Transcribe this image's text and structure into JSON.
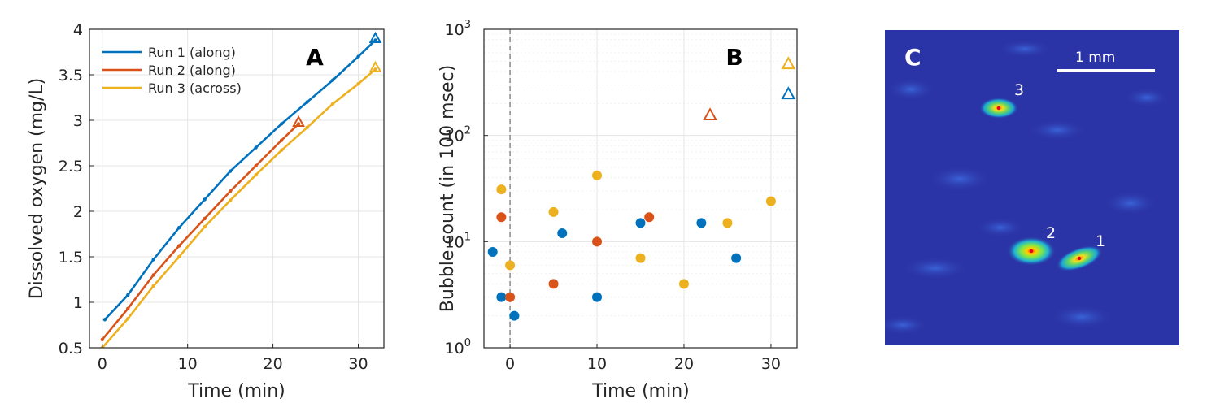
{
  "colors": {
    "run1": "#0072bd",
    "run2": "#d95319",
    "run3": "#edb120",
    "image_bg": "#2b34a6"
  },
  "chart_data": [
    {
      "panel_label": "A",
      "type": "line",
      "xlabel": "Time (min)",
      "ylabel": "Dissolved oxygen (mg/L)",
      "xlim": [
        -1.5,
        33
      ],
      "ylim": [
        0.5,
        4
      ],
      "xticks": [
        "0",
        "10",
        "20",
        "30"
      ],
      "yticks": [
        "0.5",
        "1",
        "1.5",
        "2",
        "2.5",
        "3",
        "3.5",
        "4"
      ],
      "grid": true,
      "legend_position": "top-left",
      "series": [
        {
          "name": "Run 1 (along)",
          "color": "#0072bd",
          "x": [
            0.3,
            3,
            6,
            9,
            12,
            15,
            18,
            21,
            24,
            27,
            30,
            32
          ],
          "y": [
            0.81,
            1.08,
            1.47,
            1.82,
            2.13,
            2.44,
            2.7,
            2.96,
            3.2,
            3.44,
            3.7,
            3.88
          ]
        },
        {
          "name": "Run 2 (along)",
          "color": "#d95319",
          "x": [
            0,
            3,
            6,
            9,
            12,
            15,
            18,
            21,
            23
          ],
          "y": [
            0.59,
            0.93,
            1.3,
            1.62,
            1.92,
            2.22,
            2.5,
            2.78,
            2.96
          ]
        },
        {
          "name": "Run 3 (across)",
          "color": "#edb120",
          "x": [
            0,
            3,
            6,
            9,
            12,
            15,
            18,
            21,
            24,
            27,
            30,
            32
          ],
          "y": [
            0.5,
            0.82,
            1.18,
            1.5,
            1.83,
            2.12,
            2.4,
            2.67,
            2.92,
            3.18,
            3.4,
            3.56
          ]
        }
      ],
      "end_markers": [
        {
          "series": "Run 1 (along)",
          "x": 32,
          "y": 3.88,
          "marker": "triangle"
        },
        {
          "series": "Run 2 (along)",
          "x": 23,
          "y": 2.96,
          "marker": "triangle"
        },
        {
          "series": "Run 3 (across)",
          "x": 32,
          "y": 3.56,
          "marker": "triangle"
        }
      ]
    },
    {
      "panel_label": "B",
      "type": "scatter",
      "xlabel": "Time (min)",
      "ylabel": "Bubble count (in 100 msec)",
      "xlim": [
        -3,
        33
      ],
      "ylim": [
        1,
        1000
      ],
      "yscale": "log",
      "xticks": [
        "0",
        "10",
        "20",
        "30"
      ],
      "yticks": [
        {
          "base": "10",
          "exp": "0"
        },
        {
          "base": "10",
          "exp": "1"
        },
        {
          "base": "10",
          "exp": "2"
        },
        {
          "base": "10",
          "exp": "3"
        }
      ],
      "grid": true,
      "vline_x": 0,
      "series": [
        {
          "color": "#0072bd",
          "x": [
            -2,
            -1,
            0.5,
            6,
            10,
            15,
            22,
            26
          ],
          "y": [
            8,
            3,
            2,
            12,
            3,
            15,
            15,
            7
          ]
        },
        {
          "color": "#d95319",
          "x": [
            -1,
            0,
            5,
            10,
            16
          ],
          "y": [
            17,
            3,
            4,
            10,
            17
          ]
        },
        {
          "color": "#edb120",
          "x": [
            -1,
            0,
            5,
            10,
            15,
            20,
            25,
            30
          ],
          "y": [
            31,
            6,
            19,
            42,
            7,
            4,
            15,
            24
          ]
        }
      ],
      "triangle_markers": [
        {
          "color": "#d95319",
          "x": 23,
          "y": 155
        },
        {
          "color": "#edb120",
          "x": 32,
          "y": 470
        },
        {
          "color": "#0072bd",
          "x": 32,
          "y": 245
        }
      ]
    }
  ],
  "image_panel": {
    "panel_label": "C",
    "scale_bar_label": "1 mm",
    "spot_labels": [
      "3",
      "2",
      "1"
    ]
  }
}
